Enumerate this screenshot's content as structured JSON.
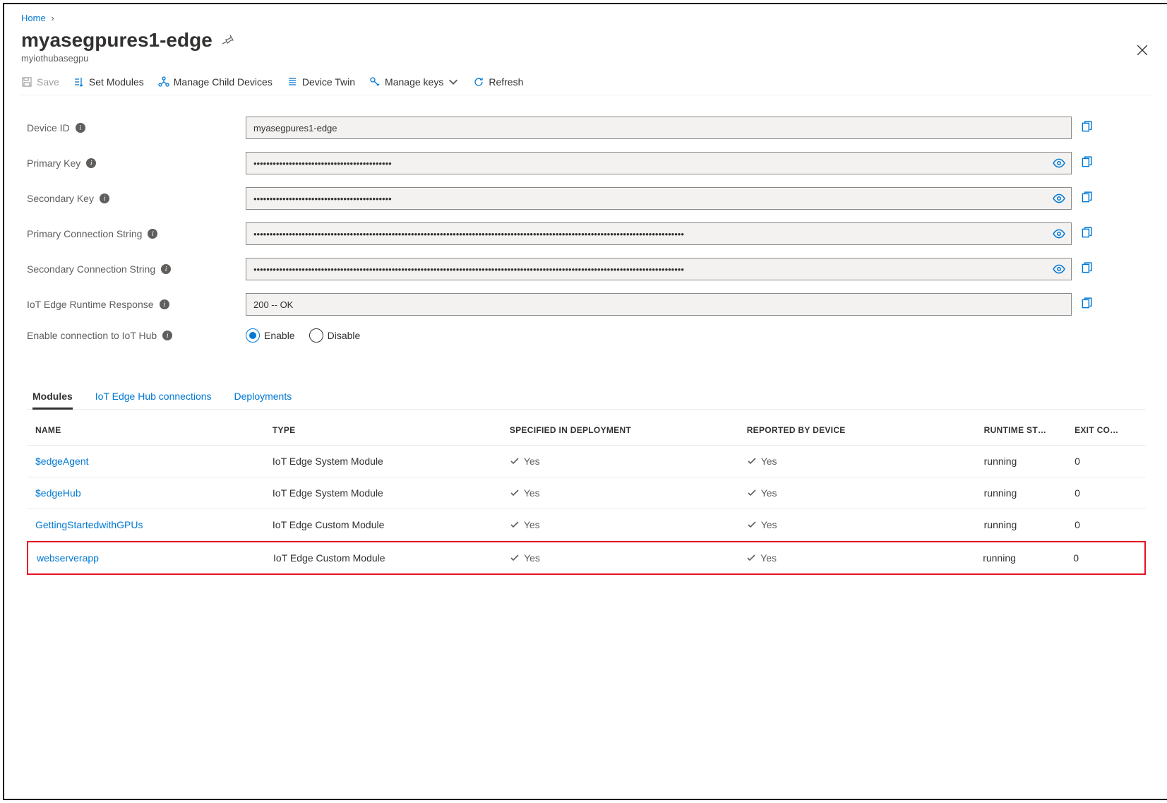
{
  "breadcrumb": {
    "home": "Home"
  },
  "header": {
    "title": "myasegpures1-edge",
    "subtitle": "myiothubasegpu"
  },
  "toolbar": {
    "save": "Save",
    "set_modules": "Set Modules",
    "manage_child": "Manage Child Devices",
    "device_twin": "Device Twin",
    "manage_keys": "Manage keys",
    "refresh": "Refresh"
  },
  "fields": {
    "device_id": {
      "label": "Device ID",
      "value": "myasegpures1-edge"
    },
    "primary_key": {
      "label": "Primary Key",
      "value": "•••••••••••••••••••••••••••••••••••••••••••"
    },
    "secondary_key": {
      "label": "Secondary Key",
      "value": "•••••••••••••••••••••••••••••••••••••••••••"
    },
    "primary_conn": {
      "label": "Primary Connection String",
      "value": "••••••••••••••••••••••••••••••••••••••••••••••••••••••••••••••••••••••••••••••••••••••••••••••••••••••••••••••••••••••••••••••••••••••"
    },
    "secondary_conn": {
      "label": "Secondary Connection String",
      "value": "••••••••••••••••••••••••••••••••••••••••••••••••••••••••••••••••••••••••••••••••••••••••••••••••••••••••••••••••••••••••••••••••••••••"
    },
    "runtime_resp": {
      "label": "IoT Edge Runtime Response",
      "value": "200 -- OK"
    },
    "enable_conn": {
      "label": "Enable connection to IoT Hub",
      "enable": "Enable",
      "disable": "Disable"
    }
  },
  "tabs": {
    "modules": "Modules",
    "connections": "IoT Edge Hub connections",
    "deployments": "Deployments"
  },
  "table": {
    "headers": {
      "name": "NAME",
      "type": "TYPE",
      "specified": "SPECIFIED IN DEPLOYMENT",
      "reported": "REPORTED BY DEVICE",
      "runtime": "RUNTIME ST…",
      "exit": "EXIT CO…"
    },
    "yes": "Yes",
    "rows": [
      {
        "name": "$edgeAgent",
        "type": "IoT Edge System Module",
        "runtime": "running",
        "exit": "0",
        "highlight": false
      },
      {
        "name": "$edgeHub",
        "type": "IoT Edge System Module",
        "runtime": "running",
        "exit": "0",
        "highlight": false
      },
      {
        "name": "GettingStartedwithGPUs",
        "type": "IoT Edge Custom Module",
        "runtime": "running",
        "exit": "0",
        "highlight": false
      },
      {
        "name": "webserverapp",
        "type": "IoT Edge Custom Module",
        "runtime": "running",
        "exit": "0",
        "highlight": true
      }
    ]
  }
}
